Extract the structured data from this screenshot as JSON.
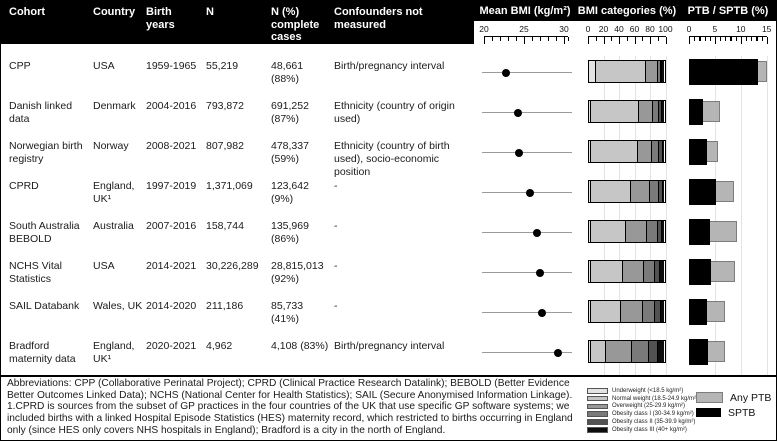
{
  "header": {
    "columns": [
      "Cohort",
      "Country",
      "Birth years",
      "N",
      "N (%) complete cases",
      "Confounders not measured"
    ]
  },
  "rows": [
    {
      "cohort": "CPP",
      "country": "USA",
      "birth_years": "1959-1965",
      "n": "55,219",
      "n_complete": "48,661 (88%)",
      "confounders": "Birth/pregnancy interval"
    },
    {
      "cohort": "Danish linked data",
      "country": "Denmark",
      "birth_years": "2004-2016",
      "n": "793,872",
      "n_complete": "691,252 (87%)",
      "confounders": "Ethnicity (country of origin used)"
    },
    {
      "cohort": "Norwegian birth registry",
      "country": "Norway",
      "birth_years": "2008-2021",
      "n": "807,982",
      "n_complete": "478,337 (59%)",
      "confounders": "Ethnicity (country of birth used), socio-economic position"
    },
    {
      "cohort": "CPRD",
      "country": "England, UK¹",
      "birth_years": "1997-2019",
      "n": "1,371,069",
      "n_complete": "123,642 (9%)",
      "confounders": "-"
    },
    {
      "cohort": "South Australia BEBOLD",
      "country": "Australia",
      "birth_years": "2007-2016",
      "n": "158,744",
      "n_complete": "135,969 (86%)",
      "confounders": "-"
    },
    {
      "cohort": "NCHS Vital Statistics",
      "country": "USA",
      "birth_years": "2014-2021",
      "n": "30,226,289",
      "n_complete": "28,815,013 (92%)",
      "confounders": "-"
    },
    {
      "cohort": "SAIL Databank",
      "country": "Wales, UK",
      "birth_years": "2014-2020",
      "n": "211,186",
      "n_complete": "85,733 (41%)",
      "confounders": "-"
    },
    {
      "cohort": "Bradford maternity data",
      "country": "England, UK¹",
      "birth_years": "2020-2021",
      "n": "4,962",
      "n_complete": "4,108 (83%)",
      "confounders": "Birth/pregnancy interval"
    }
  ],
  "chart_data": [
    {
      "type": "scatter",
      "title": "Mean BMI (kg/m²)",
      "categories": [
        "CPP",
        "Danish linked data",
        "Norwegian birth registry",
        "CPRD",
        "South Australia BEBOLD",
        "NCHS Vital Statistics",
        "SAIL Databank",
        "Bradford maternity data"
      ],
      "values": [
        22.8,
        24.3,
        24.4,
        25.7,
        26.6,
        27.0,
        27.2,
        29.2
      ],
      "xlim": [
        20,
        30.5
      ],
      "xticks": [
        20,
        25,
        30
      ],
      "grid": false
    },
    {
      "type": "bar",
      "stacked": true,
      "title": "BMI categories (%)",
      "categories": [
        "CPP",
        "Danish linked data",
        "Norwegian birth registry",
        "CPRD",
        "South Australia BEBOLD",
        "NCHS Vital Statistics",
        "SAIL Databank",
        "Bradford maternity data"
      ],
      "series": [
        {
          "name": "Underweight (<18.5 kg/m²)",
          "color": "#e3e3e3",
          "values": [
            9,
            3,
            3,
            3,
            3,
            3,
            3,
            2
          ]
        },
        {
          "name": "Normal weight (18.5-24.9 kg/m²)",
          "color": "#c6c6c6",
          "values": [
            67,
            63,
            62,
            53,
            46,
            42,
            40,
            21
          ]
        },
        {
          "name": "Overweight (25-29.9 kg/m²)",
          "color": "#989898",
          "values": [
            15,
            19,
            19,
            25,
            28,
            28,
            29,
            34
          ]
        },
        {
          "name": "Obesity class I (30-34.9 kg/m²)",
          "color": "#7a7a7a",
          "values": [
            4,
            8,
            9,
            12,
            14,
            14,
            16,
            23
          ]
        },
        {
          "name": "Obesity class II (35-39.9 kg/m²)",
          "color": "#525252",
          "values": [
            2,
            4,
            5,
            5,
            6,
            7,
            7,
            11
          ]
        },
        {
          "name": "Obesity class III (40+ kg/m²)",
          "color": "#0d0d0d",
          "values": [
            3,
            3,
            2,
            2,
            3,
            6,
            5,
            9
          ]
        }
      ],
      "xlim": [
        0,
        100
      ],
      "xticks": [
        0,
        20,
        40,
        60,
        80,
        100
      ],
      "grid": true
    },
    {
      "type": "bar",
      "title": "PTB / SPTB (%)",
      "categories": [
        "CPP",
        "Danish linked data",
        "Norwegian birth registry",
        "CPRD",
        "South Australia BEBOLD",
        "NCHS Vital Statistics",
        "SAIL Databank",
        "Bradford maternity data"
      ],
      "series": [
        {
          "name": "Any PTB",
          "color": "#b5b5b5",
          "values": [
            15.0,
            5.9,
            5.6,
            8.6,
            9.2,
            8.8,
            6.9,
            6.9
          ]
        },
        {
          "name": "SPTB",
          "color": "#000000",
          "values": [
            13.4,
            2.7,
            3.4,
            5.2,
            4.0,
            4.3,
            3.4,
            3.6
          ]
        }
      ],
      "xlim": [
        0,
        15
      ],
      "xticks": [
        0,
        5,
        10,
        15
      ],
      "grid": true
    }
  ],
  "footer": {
    "abbreviations": "Abbreviations: CPP (Collaborative Perinatal Project); CPRD (Clinical Practice Research Datalink); BEBOLD (Better Evidence Better Outcomes Linked Data); NCHS (National Center for Health Statistics); SAIL (Secure Anonymised Information Linkage).",
    "footnote": "1.CPRD is sources from the subset of GP practices in the four countries of the UK that use specific GP software systems; we included births with a linked Hospital Episode Statistics (HES) maternity record, which restricted to births occurring in England only (since HES only covers NHS hospitals in England); Bradford is a city in the north of England."
  }
}
